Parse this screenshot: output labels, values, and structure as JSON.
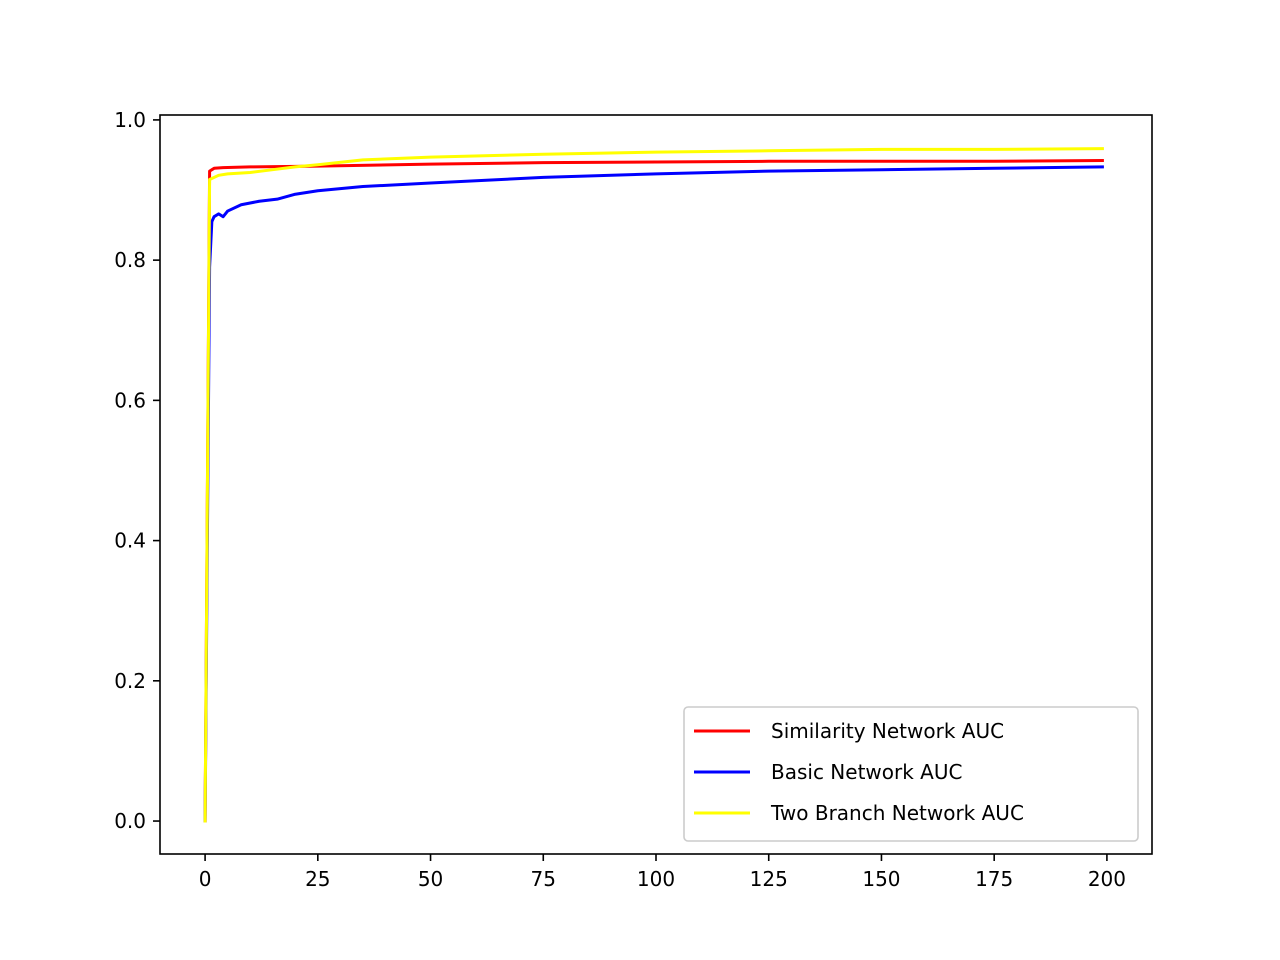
{
  "chart_data": {
    "type": "line",
    "title": "",
    "xlabel": "",
    "ylabel": "",
    "xlim": [
      -10,
      210
    ],
    "ylim": [
      -0.047,
      1.007
    ],
    "x_ticks": [
      0,
      25,
      50,
      75,
      100,
      125,
      150,
      175,
      200
    ],
    "y_ticks": [
      0.0,
      0.2,
      0.4,
      0.6,
      0.8,
      1.0
    ],
    "x_tick_labels": [
      "0",
      "25",
      "50",
      "75",
      "100",
      "125",
      "150",
      "175",
      "200"
    ],
    "y_tick_labels": [
      "0.0",
      "0.2",
      "0.4",
      "0.6",
      "0.8",
      "1.0"
    ],
    "grid": false,
    "legend_position": "lower-right",
    "series": [
      {
        "name": "Similarity Network AUC",
        "color": "#ff0000",
        "points": [
          [
            0,
            0.0
          ],
          [
            1,
            0.927
          ],
          [
            2,
            0.931
          ],
          [
            4,
            0.932
          ],
          [
            10,
            0.933
          ],
          [
            25,
            0.934
          ],
          [
            50,
            0.937
          ],
          [
            75,
            0.939
          ],
          [
            100,
            0.94
          ],
          [
            125,
            0.941
          ],
          [
            150,
            0.941
          ],
          [
            175,
            0.941
          ],
          [
            199,
            0.942
          ]
        ]
      },
      {
        "name": "Basic Network AUC",
        "color": "#0000ff",
        "points": [
          [
            0,
            0.0
          ],
          [
            1,
            0.79
          ],
          [
            1.5,
            0.855
          ],
          [
            2,
            0.862
          ],
          [
            3,
            0.866
          ],
          [
            4,
            0.862
          ],
          [
            5,
            0.87
          ],
          [
            8,
            0.879
          ],
          [
            12,
            0.884
          ],
          [
            16,
            0.887
          ],
          [
            20,
            0.894
          ],
          [
            25,
            0.899
          ],
          [
            35,
            0.905
          ],
          [
            50,
            0.91
          ],
          [
            75,
            0.918
          ],
          [
            100,
            0.923
          ],
          [
            125,
            0.927
          ],
          [
            150,
            0.929
          ],
          [
            175,
            0.931
          ],
          [
            199,
            0.933
          ]
        ]
      },
      {
        "name": "Two Branch Network AUC",
        "color": "#ffff00",
        "points": [
          [
            0,
            0.0
          ],
          [
            1,
            0.915
          ],
          [
            3,
            0.921
          ],
          [
            5,
            0.923
          ],
          [
            10,
            0.925
          ],
          [
            15,
            0.929
          ],
          [
            20,
            0.933
          ],
          [
            25,
            0.936
          ],
          [
            35,
            0.943
          ],
          [
            50,
            0.947
          ],
          [
            75,
            0.951
          ],
          [
            100,
            0.954
          ],
          [
            125,
            0.956
          ],
          [
            150,
            0.958
          ],
          [
            175,
            0.958
          ],
          [
            199,
            0.959
          ]
        ]
      }
    ]
  }
}
